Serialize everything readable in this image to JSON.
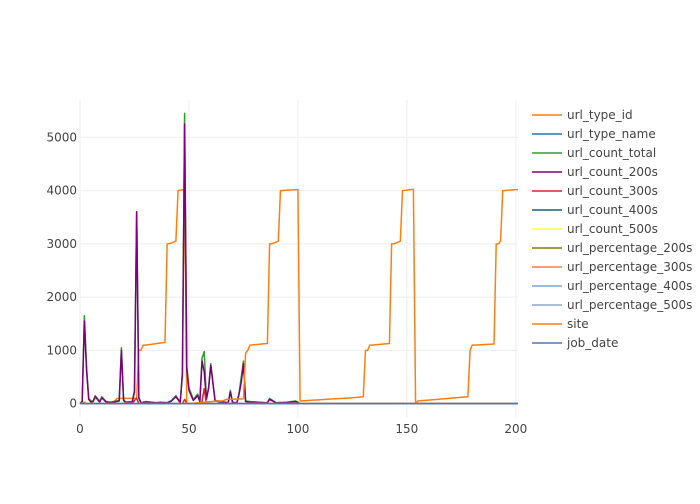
{
  "chart_data": {
    "type": "line",
    "xlim": [
      0,
      201
    ],
    "ylim": [
      -250,
      5700
    ],
    "xticks": [
      0,
      50,
      100,
      150,
      200
    ],
    "yticks": [
      0,
      1000,
      2000,
      3000,
      4000,
      5000
    ],
    "grid": true,
    "legend_position": "right",
    "series": [
      {
        "name": "url_type_id",
        "color": "#ff7f0e",
        "x": [
          0,
          1,
          2,
          3,
          14,
          15,
          16,
          17,
          26,
          27,
          28,
          29,
          30,
          39,
          40,
          41,
          44,
          45,
          48,
          49,
          50
        ],
        "y": [
          0,
          0,
          30,
          0,
          0,
          0,
          50,
          100,
          100,
          1000,
          1000,
          1100,
          1100,
          1150,
          3000,
          3000,
          3050,
          4000,
          4020,
          0,
          0
        ]
      },
      {
        "name": "url_type_name",
        "color": "#1f77b4",
        "x": [
          0,
          201
        ],
        "y": [
          0,
          0
        ]
      },
      {
        "name": "url_count_total",
        "color": "#2ca02c",
        "x": [
          0,
          1,
          2,
          3,
          4,
          5,
          6,
          7,
          8,
          9,
          10,
          12,
          14,
          18,
          19,
          20,
          21,
          24,
          25,
          26,
          27,
          28,
          30,
          35,
          37,
          40,
          42,
          44,
          46,
          47,
          48,
          49,
          50,
          52,
          54,
          55,
          56,
          57,
          58,
          59,
          60,
          62,
          65,
          68,
          69,
          70,
          72,
          73,
          74,
          75,
          76,
          78,
          82,
          86,
          87,
          90,
          95,
          99,
          100,
          101,
          201
        ],
        "y": [
          0,
          50,
          1650,
          700,
          100,
          50,
          50,
          150,
          100,
          40,
          130,
          40,
          30,
          60,
          1050,
          80,
          30,
          40,
          250,
          3600,
          120,
          20,
          40,
          20,
          30,
          20,
          60,
          150,
          30,
          600,
          5450,
          700,
          300,
          80,
          180,
          50,
          850,
          980,
          100,
          300,
          750,
          60,
          40,
          20,
          250,
          30,
          20,
          200,
          500,
          800,
          50,
          40,
          30,
          20,
          100,
          20,
          30,
          50,
          30,
          0,
          0
        ]
      },
      {
        "name": "url_count_200s",
        "color": "#7f007f",
        "x": [
          0,
          1,
          2,
          3,
          4,
          5,
          6,
          7,
          8,
          9,
          10,
          12,
          14,
          18,
          19,
          20,
          21,
          24,
          25,
          26,
          27,
          28,
          30,
          35,
          37,
          40,
          42,
          44,
          46,
          47,
          48,
          49,
          50,
          52,
          54,
          55,
          56,
          57,
          58,
          59,
          60,
          62,
          65,
          68,
          69,
          70,
          72,
          73,
          74,
          75,
          76,
          78,
          82,
          86,
          87,
          90,
          95,
          99,
          100,
          101,
          201
        ],
        "y": [
          0,
          40,
          1550,
          620,
          80,
          30,
          40,
          130,
          80,
          30,
          110,
          30,
          20,
          50,
          1000,
          60,
          20,
          30,
          220,
          3600,
          100,
          10,
          30,
          15,
          20,
          15,
          50,
          130,
          20,
          550,
          5250,
          650,
          250,
          60,
          150,
          40,
          800,
          600,
          80,
          280,
          720,
          50,
          30,
          15,
          220,
          20,
          15,
          180,
          400,
          750,
          40,
          30,
          20,
          15,
          80,
          15,
          20,
          40,
          20,
          0,
          0
        ]
      },
      {
        "name": "url_count_300s",
        "color": "#d62728",
        "x": [
          0,
          24,
          25,
          26,
          27,
          47,
          48,
          49,
          55,
          56,
          57,
          58,
          200
        ],
        "y": [
          0,
          0,
          60,
          100,
          0,
          0,
          80,
          0,
          0,
          40,
          280,
          0,
          0
        ]
      },
      {
        "name": "url_count_400s",
        "color": "#17607a",
        "x": [
          0,
          201
        ],
        "y": [
          0,
          0
        ]
      },
      {
        "name": "url_count_500s",
        "color": "#ffff33",
        "x": [
          0,
          201
        ],
        "y": [
          0,
          0
        ]
      },
      {
        "name": "url_percentage_200s",
        "color": "#7f7f00",
        "x": [
          0,
          201
        ],
        "y": [
          0,
          0
        ]
      },
      {
        "name": "url_percentage_300s",
        "color": "#ff7f50",
        "x": [
          0,
          201
        ],
        "y": [
          0,
          0
        ]
      },
      {
        "name": "url_percentage_400s",
        "color": "#7fa4d9",
        "x": [
          0,
          201
        ],
        "y": [
          0,
          0
        ]
      },
      {
        "name": "url_percentage_500s",
        "color": "#8fa8c8",
        "x": [
          0,
          201
        ],
        "y": [
          0,
          0
        ]
      },
      {
        "name": "site",
        "color": "#ff7f0e",
        "x": [
          50,
          63,
          65,
          66,
          67,
          75,
          76,
          77,
          78,
          86,
          87,
          88,
          91,
          92,
          100,
          101,
          120,
          122,
          130,
          131,
          132,
          133,
          134,
          142,
          143,
          144,
          147,
          148,
          152,
          153,
          154,
          155,
          178,
          179,
          180,
          181,
          190,
          191,
          192,
          193,
          194,
          201
        ],
        "y": [
          0,
          50,
          50,
          60,
          80,
          90,
          950,
          1000,
          1100,
          1130,
          3000,
          3000,
          3050,
          4000,
          4020,
          50,
          100,
          100,
          130,
          1000,
          1000,
          1100,
          1100,
          1130,
          3000,
          3000,
          3050,
          4000,
          4020,
          4020,
          0,
          50,
          130,
          1000,
          1100,
          1100,
          1120,
          3000,
          3000,
          3050,
          4000,
          4020
        ]
      },
      {
        "name": "job_date",
        "color": "#4c78b0",
        "x": [
          0,
          201
        ],
        "y": [
          0,
          0
        ]
      }
    ]
  }
}
